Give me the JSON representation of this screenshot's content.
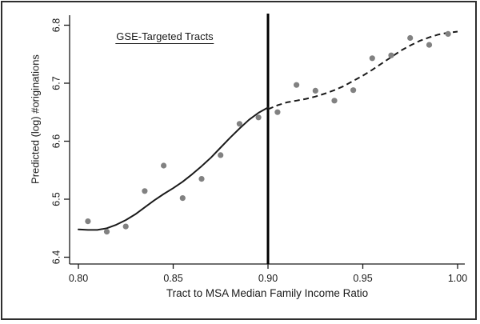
{
  "figure": {
    "border_color": "#2e2e2e",
    "background": "#ffffff"
  },
  "chart_data": {
    "type": "scatter",
    "title": "",
    "annotation": "GSE-Targeted Tracts",
    "xlabel": "Tract to MSA Median Family Income Ratio",
    "ylabel": "Predicted (log) #originations",
    "xlim": [
      0.8,
      1.0
    ],
    "ylim": [
      6.4,
      6.8
    ],
    "x_ticks": [
      "0.80",
      "0.85",
      "0.90",
      "0.95",
      "1.00"
    ],
    "y_ticks": [
      "6.4",
      "6.5",
      "6.6",
      "6.7",
      "6.8"
    ],
    "grid": false,
    "legend": "none",
    "vline_x": 0.9,
    "vline_color": "#000000",
    "point_color": "#818181",
    "line_color": "#1a1a1a",
    "scatter": {
      "x": [
        0.805,
        0.815,
        0.825,
        0.835,
        0.845,
        0.855,
        0.865,
        0.875,
        0.885,
        0.895,
        0.905,
        0.915,
        0.925,
        0.935,
        0.945,
        0.955,
        0.965,
        0.975,
        0.985,
        0.995
      ],
      "y": [
        6.462,
        6.444,
        6.453,
        6.514,
        6.558,
        6.502,
        6.535,
        6.576,
        6.63,
        6.641,
        6.65,
        6.697,
        6.687,
        6.67,
        6.688,
        6.743,
        6.748,
        6.778,
        6.766,
        6.785
      ]
    },
    "fit_solid": [
      [
        0.8,
        6.448
      ],
      [
        0.805,
        6.447
      ],
      [
        0.81,
        6.447
      ],
      [
        0.815,
        6.45
      ],
      [
        0.82,
        6.456
      ],
      [
        0.825,
        6.464
      ],
      [
        0.83,
        6.474
      ],
      [
        0.835,
        6.486
      ],
      [
        0.84,
        6.498
      ],
      [
        0.845,
        6.509
      ],
      [
        0.85,
        6.519
      ],
      [
        0.855,
        6.53
      ],
      [
        0.86,
        6.543
      ],
      [
        0.865,
        6.557
      ],
      [
        0.87,
        6.572
      ],
      [
        0.875,
        6.589
      ],
      [
        0.88,
        6.606
      ],
      [
        0.885,
        6.622
      ],
      [
        0.89,
        6.637
      ],
      [
        0.895,
        6.649
      ],
      [
        0.9,
        6.658
      ]
    ],
    "fit_dashed": [
      [
        0.9,
        6.655
      ],
      [
        0.905,
        6.662
      ],
      [
        0.91,
        6.667
      ],
      [
        0.915,
        6.67
      ],
      [
        0.92,
        6.673
      ],
      [
        0.925,
        6.677
      ],
      [
        0.93,
        6.682
      ],
      [
        0.935,
        6.688
      ],
      [
        0.94,
        6.695
      ],
      [
        0.945,
        6.704
      ],
      [
        0.95,
        6.713
      ],
      [
        0.955,
        6.723
      ],
      [
        0.96,
        6.734
      ],
      [
        0.965,
        6.745
      ],
      [
        0.97,
        6.756
      ],
      [
        0.975,
        6.765
      ],
      [
        0.98,
        6.773
      ],
      [
        0.985,
        6.779
      ],
      [
        0.99,
        6.784
      ],
      [
        0.995,
        6.787
      ],
      [
        1.0,
        6.789
      ]
    ]
  }
}
